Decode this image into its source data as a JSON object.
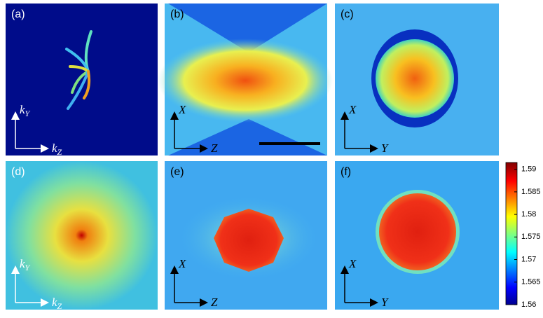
{
  "panels": [
    {
      "label": "(a)",
      "x_axis": {
        "text": "k",
        "sub": "Z"
      },
      "y_axis": {
        "text": "k",
        "sub": "Y"
      }
    },
    {
      "label": "(b)",
      "x_axis": {
        "text": "Z"
      },
      "y_axis": {
        "text": "X"
      }
    },
    {
      "label": "(c)",
      "x_axis": {
        "text": "Y"
      },
      "y_axis": {
        "text": "X"
      }
    },
    {
      "label": "(d)",
      "x_axis": {
        "text": "k",
        "sub": "Z"
      },
      "y_axis": {
        "text": "k",
        "sub": "Y"
      }
    },
    {
      "label": "(e)",
      "x_axis": {
        "text": "Z"
      },
      "y_axis": {
        "text": "X"
      }
    },
    {
      "label": "(f)",
      "x_axis": {
        "text": "Y"
      },
      "y_axis": {
        "text": "X"
      }
    }
  ],
  "colorbar": {
    "lim": [
      1.56,
      1.5915
    ],
    "ticks": [
      1.56,
      1.565,
      1.57,
      1.575,
      1.58,
      1.585,
      1.59
    ]
  }
}
